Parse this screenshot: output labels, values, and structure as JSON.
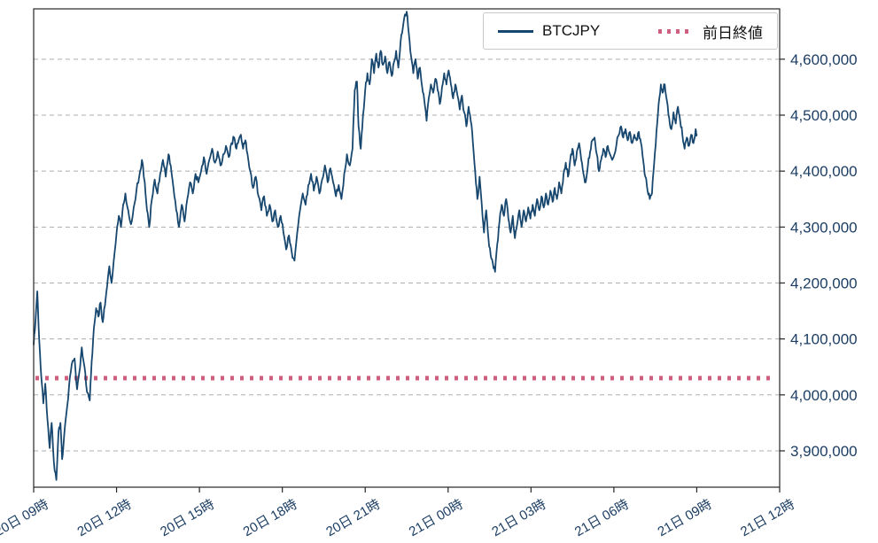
{
  "chart_data": {
    "type": "line",
    "title": "",
    "xlabel": "",
    "ylabel": "",
    "x_axis": {
      "range_hours": [
        0,
        27
      ],
      "tick_hours": [
        0,
        3,
        6,
        9,
        12,
        15,
        18,
        21,
        24,
        27
      ],
      "tick_labels": [
        "20日 09時",
        "20日 12時",
        "20日 15時",
        "20日 18時",
        "20日 21時",
        "21日 00時",
        "21日 03時",
        "21日 06時",
        "21日 09時",
        "21日 12時"
      ]
    },
    "y_axis": {
      "range": [
        3835000,
        4690000
      ],
      "ticks": [
        3900000,
        4000000,
        4100000,
        4200000,
        4300000,
        4400000,
        4500000,
        4600000
      ],
      "tick_labels": [
        "3,900,000",
        "4,000,000",
        "4,100,000",
        "4,200,000",
        "4,300,000",
        "4,400,000",
        "4,500,000",
        "4,600,000"
      ],
      "grid": true
    },
    "legend": {
      "position": "upper-right",
      "items": [
        {
          "label": "BTCJPY",
          "color": "#17476E",
          "style": "solid"
        },
        {
          "label": "前日終値",
          "color": "#CE5F7E",
          "style": "dotted"
        }
      ]
    },
    "previous_close": {
      "label": "前日終値",
      "value": 4030000,
      "color": "#CE5F7E",
      "style": "dotted"
    },
    "series": [
      {
        "name": "BTCJPY",
        "color": "#17476E",
        "points_hours_price": [
          [
            0.0,
            4090000
          ],
          [
            0.07,
            4135000
          ],
          [
            0.13,
            4185000
          ],
          [
            0.2,
            4100000
          ],
          [
            0.28,
            4030000
          ],
          [
            0.35,
            3985000
          ],
          [
            0.42,
            4020000
          ],
          [
            0.5,
            3955000
          ],
          [
            0.58,
            3905000
          ],
          [
            0.65,
            3950000
          ],
          [
            0.73,
            3880000
          ],
          [
            0.82,
            3848000
          ],
          [
            0.9,
            3935000
          ],
          [
            0.97,
            3950000
          ],
          [
            1.03,
            3885000
          ],
          [
            1.1,
            3925000
          ],
          [
            1.18,
            3965000
          ],
          [
            1.28,
            4015000
          ],
          [
            1.38,
            4055000
          ],
          [
            1.48,
            4065000
          ],
          [
            1.57,
            4010000
          ],
          [
            1.65,
            4040000
          ],
          [
            1.74,
            4085000
          ],
          [
            1.84,
            4050000
          ],
          [
            1.93,
            4005000
          ],
          [
            2.03,
            3990000
          ],
          [
            2.1,
            4060000
          ],
          [
            2.18,
            4120000
          ],
          [
            2.26,
            4155000
          ],
          [
            2.34,
            4140000
          ],
          [
            2.42,
            4165000
          ],
          [
            2.5,
            4130000
          ],
          [
            2.58,
            4160000
          ],
          [
            2.66,
            4195000
          ],
          [
            2.74,
            4230000
          ],
          [
            2.82,
            4200000
          ],
          [
            2.9,
            4240000
          ],
          [
            3.0,
            4290000
          ],
          [
            3.08,
            4320000
          ],
          [
            3.16,
            4300000
          ],
          [
            3.24,
            4340000
          ],
          [
            3.32,
            4360000
          ],
          [
            3.42,
            4330000
          ],
          [
            3.52,
            4305000
          ],
          [
            3.62,
            4335000
          ],
          [
            3.72,
            4365000
          ],
          [
            3.82,
            4390000
          ],
          [
            3.92,
            4420000
          ],
          [
            4.02,
            4380000
          ],
          [
            4.1,
            4330000
          ],
          [
            4.18,
            4300000
          ],
          [
            4.28,
            4350000
          ],
          [
            4.38,
            4385000
          ],
          [
            4.48,
            4360000
          ],
          [
            4.58,
            4395000
          ],
          [
            4.68,
            4420000
          ],
          [
            4.78,
            4390000
          ],
          [
            4.88,
            4430000
          ],
          [
            4.96,
            4410000
          ],
          [
            5.06,
            4370000
          ],
          [
            5.16,
            4330000
          ],
          [
            5.26,
            4300000
          ],
          [
            5.36,
            4340000
          ],
          [
            5.46,
            4310000
          ],
          [
            5.56,
            4350000
          ],
          [
            5.66,
            4380000
          ],
          [
            5.76,
            4360000
          ],
          [
            5.86,
            4395000
          ],
          [
            5.96,
            4380000
          ],
          [
            6.06,
            4400000
          ],
          [
            6.16,
            4425000
          ],
          [
            6.26,
            4395000
          ],
          [
            6.36,
            4420000
          ],
          [
            6.46,
            4440000
          ],
          [
            6.56,
            4415000
          ],
          [
            6.66,
            4435000
          ],
          [
            6.76,
            4410000
          ],
          [
            6.86,
            4430000
          ],
          [
            6.96,
            4445000
          ],
          [
            7.06,
            4425000
          ],
          [
            7.16,
            4450000
          ],
          [
            7.26,
            4460000
          ],
          [
            7.34,
            4440000
          ],
          [
            7.42,
            4455000
          ],
          [
            7.5,
            4465000
          ],
          [
            7.58,
            4440000
          ],
          [
            7.66,
            4455000
          ],
          [
            7.74,
            4430000
          ],
          [
            7.84,
            4400000
          ],
          [
            7.94,
            4370000
          ],
          [
            8.04,
            4390000
          ],
          [
            8.14,
            4355000
          ],
          [
            8.24,
            4330000
          ],
          [
            8.34,
            4355000
          ],
          [
            8.44,
            4320000
          ],
          [
            8.54,
            4340000
          ],
          [
            8.64,
            4310000
          ],
          [
            8.74,
            4330000
          ],
          [
            8.84,
            4300000
          ],
          [
            8.94,
            4320000
          ],
          [
            9.04,
            4290000
          ],
          [
            9.14,
            4260000
          ],
          [
            9.24,
            4285000
          ],
          [
            9.34,
            4255000
          ],
          [
            9.44,
            4240000
          ],
          [
            9.54,
            4290000
          ],
          [
            9.64,
            4330000
          ],
          [
            9.74,
            4360000
          ],
          [
            9.84,
            4340000
          ],
          [
            9.94,
            4375000
          ],
          [
            10.04,
            4395000
          ],
          [
            10.14,
            4365000
          ],
          [
            10.24,
            4390000
          ],
          [
            10.34,
            4360000
          ],
          [
            10.44,
            4385000
          ],
          [
            10.54,
            4410000
          ],
          [
            10.64,
            4380000
          ],
          [
            10.74,
            4405000
          ],
          [
            10.84,
            4380000
          ],
          [
            10.94,
            4355000
          ],
          [
            11.04,
            4375000
          ],
          [
            11.14,
            4350000
          ],
          [
            11.24,
            4395000
          ],
          [
            11.34,
            4430000
          ],
          [
            11.44,
            4410000
          ],
          [
            11.54,
            4440000
          ],
          [
            11.62,
            4545000
          ],
          [
            11.7,
            4560000
          ],
          [
            11.76,
            4480000
          ],
          [
            11.84,
            4440000
          ],
          [
            11.92,
            4500000
          ],
          [
            12.0,
            4545000
          ],
          [
            12.08,
            4575000
          ],
          [
            12.16,
            4555000
          ],
          [
            12.24,
            4600000
          ],
          [
            12.32,
            4575000
          ],
          [
            12.4,
            4610000
          ],
          [
            12.48,
            4585000
          ],
          [
            12.56,
            4615000
          ],
          [
            12.64,
            4590000
          ],
          [
            12.72,
            4605000
          ],
          [
            12.8,
            4575000
          ],
          [
            12.88,
            4595000
          ],
          [
            12.96,
            4570000
          ],
          [
            13.04,
            4595000
          ],
          [
            13.12,
            4615000
          ],
          [
            13.2,
            4585000
          ],
          [
            13.28,
            4630000
          ],
          [
            13.36,
            4655000
          ],
          [
            13.44,
            4680000
          ],
          [
            13.5,
            4685000
          ],
          [
            13.58,
            4645000
          ],
          [
            13.66,
            4605000
          ],
          [
            13.74,
            4575000
          ],
          [
            13.82,
            4600000
          ],
          [
            13.9,
            4565000
          ],
          [
            13.98,
            4585000
          ],
          [
            14.06,
            4550000
          ],
          [
            14.14,
            4525000
          ],
          [
            14.22,
            4490000
          ],
          [
            14.3,
            4530000
          ],
          [
            14.38,
            4555000
          ],
          [
            14.46,
            4540000
          ],
          [
            14.54,
            4565000
          ],
          [
            14.62,
            4545000
          ],
          [
            14.7,
            4520000
          ],
          [
            14.78,
            4550000
          ],
          [
            14.86,
            4575000
          ],
          [
            14.94,
            4555000
          ],
          [
            15.02,
            4580000
          ],
          [
            15.1,
            4555000
          ],
          [
            15.18,
            4530000
          ],
          [
            15.26,
            4555000
          ],
          [
            15.34,
            4535000
          ],
          [
            15.42,
            4510000
          ],
          [
            15.5,
            4535000
          ],
          [
            15.58,
            4505000
          ],
          [
            15.66,
            4480000
          ],
          [
            15.74,
            4515000
          ],
          [
            15.82,
            4490000
          ],
          [
            15.9,
            4450000
          ],
          [
            15.98,
            4400000
          ],
          [
            16.06,
            4350000
          ],
          [
            16.14,
            4390000
          ],
          [
            16.22,
            4340000
          ],
          [
            16.3,
            4290000
          ],
          [
            16.38,
            4330000
          ],
          [
            16.46,
            4280000
          ],
          [
            16.54,
            4250000
          ],
          [
            16.62,
            4235000
          ],
          [
            16.7,
            4220000
          ],
          [
            16.78,
            4270000
          ],
          [
            16.86,
            4310000
          ],
          [
            16.94,
            4340000
          ],
          [
            17.02,
            4320000
          ],
          [
            17.1,
            4350000
          ],
          [
            17.18,
            4315000
          ],
          [
            17.26,
            4290000
          ],
          [
            17.34,
            4320000
          ],
          [
            17.42,
            4280000
          ],
          [
            17.5,
            4305000
          ],
          [
            17.58,
            4330000
          ],
          [
            17.66,
            4300000
          ],
          [
            17.74,
            4330000
          ],
          [
            17.82,
            4310000
          ],
          [
            17.9,
            4335000
          ],
          [
            17.98,
            4315000
          ],
          [
            18.06,
            4340000
          ],
          [
            18.14,
            4320000
          ],
          [
            18.22,
            4350000
          ],
          [
            18.3,
            4330000
          ],
          [
            18.38,
            4355000
          ],
          [
            18.46,
            4335000
          ],
          [
            18.54,
            4360000
          ],
          [
            18.62,
            4340000
          ],
          [
            18.7,
            4365000
          ],
          [
            18.78,
            4345000
          ],
          [
            18.86,
            4370000
          ],
          [
            18.94,
            4350000
          ],
          [
            19.02,
            4380000
          ],
          [
            19.1,
            4360000
          ],
          [
            19.18,
            4395000
          ],
          [
            19.26,
            4415000
          ],
          [
            19.34,
            4390000
          ],
          [
            19.42,
            4420000
          ],
          [
            19.5,
            4440000
          ],
          [
            19.58,
            4410000
          ],
          [
            19.66,
            4435000
          ],
          [
            19.74,
            4450000
          ],
          [
            19.82,
            4420000
          ],
          [
            19.9,
            4395000
          ],
          [
            19.98,
            4380000
          ],
          [
            20.06,
            4410000
          ],
          [
            20.14,
            4435000
          ],
          [
            20.22,
            4455000
          ],
          [
            20.3,
            4460000
          ],
          [
            20.38,
            4430000
          ],
          [
            20.46,
            4400000
          ],
          [
            20.54,
            4420000
          ],
          [
            20.62,
            4440000
          ],
          [
            20.7,
            4425000
          ],
          [
            20.78,
            4445000
          ],
          [
            20.86,
            4430000
          ],
          [
            20.94,
            4420000
          ],
          [
            21.02,
            4430000
          ],
          [
            21.1,
            4450000
          ],
          [
            21.18,
            4465000
          ],
          [
            21.26,
            4480000
          ],
          [
            21.34,
            4460000
          ],
          [
            21.42,
            4475000
          ],
          [
            21.5,
            4455000
          ],
          [
            21.58,
            4470000
          ],
          [
            21.66,
            4450000
          ],
          [
            21.74,
            4465000
          ],
          [
            21.82,
            4455000
          ],
          [
            21.9,
            4470000
          ],
          [
            21.98,
            4450000
          ],
          [
            22.06,
            4420000
          ],
          [
            22.14,
            4390000
          ],
          [
            22.22,
            4365000
          ],
          [
            22.3,
            4350000
          ],
          [
            22.38,
            4360000
          ],
          [
            22.46,
            4415000
          ],
          [
            22.54,
            4470000
          ],
          [
            22.62,
            4520000
          ],
          [
            22.7,
            4555000
          ],
          [
            22.76,
            4540000
          ],
          [
            22.84,
            4555000
          ],
          [
            22.92,
            4525000
          ],
          [
            23.0,
            4495000
          ],
          [
            23.08,
            4475000
          ],
          [
            23.16,
            4505000
          ],
          [
            23.24,
            4485000
          ],
          [
            23.32,
            4515000
          ],
          [
            23.4,
            4490000
          ],
          [
            23.48,
            4465000
          ],
          [
            23.56,
            4440000
          ],
          [
            23.64,
            4460000
          ],
          [
            23.72,
            4445000
          ],
          [
            23.8,
            4465000
          ],
          [
            23.88,
            4450000
          ],
          [
            23.96,
            4475000
          ],
          [
            24.0,
            4465000
          ]
        ]
      }
    ],
    "style": {
      "background": "#FFFFFF",
      "grid_color": "#ADADAD",
      "spine_color": "#262626",
      "tick_text_color": "#1C3E64",
      "noise_amplitude": 5500
    }
  }
}
